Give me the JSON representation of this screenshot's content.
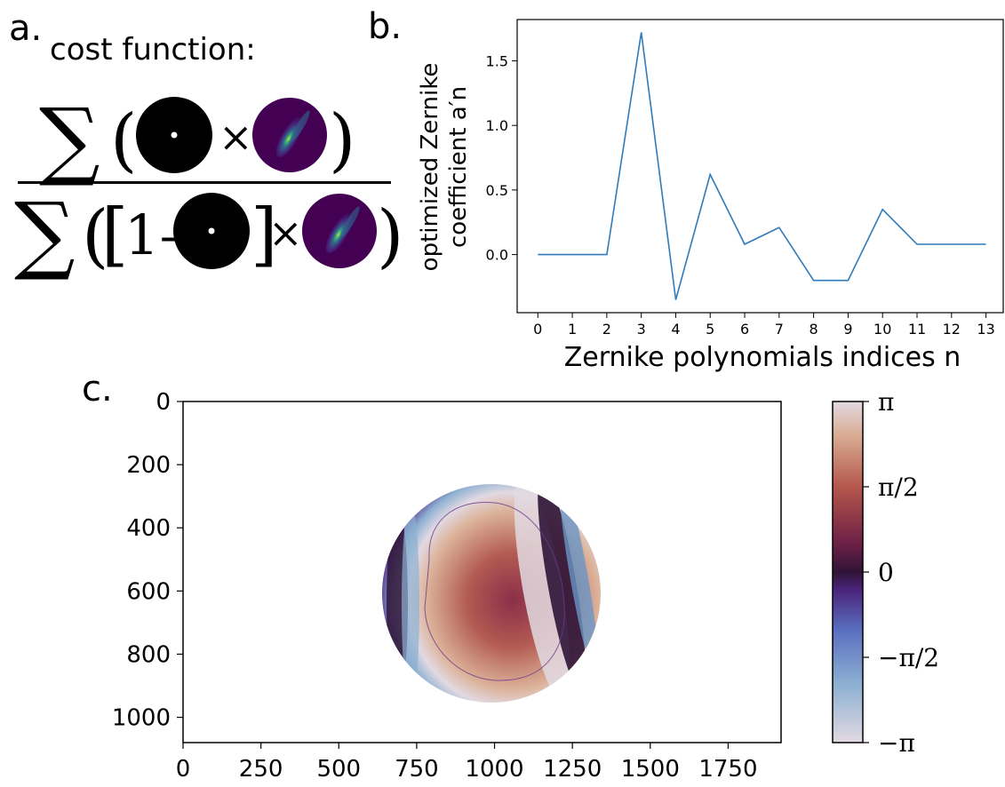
{
  "panel_a": {
    "letter": "a.",
    "title": "cost function:",
    "sum_symbol": "∑",
    "times_symbol": "×",
    "one_minus": "1–"
  },
  "panel_b": {
    "letter": "b."
  },
  "panel_c": {
    "letter": "c."
  },
  "colors": {
    "line": "#2f7ab9",
    "cmap_twilight": [
      "#e2d9e2",
      "#6a96c6",
      "#5a2d8c",
      "#2f1437",
      "#8b2e49",
      "#c97b5b",
      "#e2d9e2"
    ]
  },
  "chart_data": [
    {
      "type": "line",
      "x": [
        0,
        1,
        2,
        3,
        4,
        5,
        6,
        7,
        8,
        9,
        10,
        11,
        12,
        13
      ],
      "series": [
        {
          "values": [
            0.0,
            0.0,
            0.0,
            1.72,
            -0.35,
            0.62,
            0.08,
            0.21,
            -0.2,
            -0.2,
            0.35,
            0.08,
            0.08,
            0.08
          ]
        }
      ],
      "xlabel": "Zernike polynomials indices n",
      "ylabel_line1": "optimized Zernike",
      "ylabel_line2": "coefficient a′n",
      "xticks": [
        "0",
        "1",
        "2",
        "3",
        "4",
        "5",
        "6",
        "7",
        "8",
        "9",
        "10",
        "11",
        "12",
        "13"
      ],
      "yticks": [
        "0.0",
        "0.5",
        "1.0",
        "1.5"
      ],
      "xlim": [
        -0.6,
        13.5
      ],
      "ylim": [
        -0.45,
        1.82
      ],
      "grid": false
    },
    {
      "type": "heatmap",
      "xticks": [
        "0",
        "250",
        "500",
        "750",
        "1000",
        "1250",
        "1500",
        "1750"
      ],
      "yticks": [
        "0",
        "200",
        "400",
        "600",
        "800",
        "1000"
      ],
      "xlim": [
        0,
        1920
      ],
      "ylim": [
        1080,
        0
      ],
      "colorbar_ticks": [
        "π",
        "π/2",
        "0",
        "−π/2",
        "−π"
      ],
      "colormap": "twilight",
      "value_range": [
        "−π",
        "π"
      ]
    }
  ]
}
